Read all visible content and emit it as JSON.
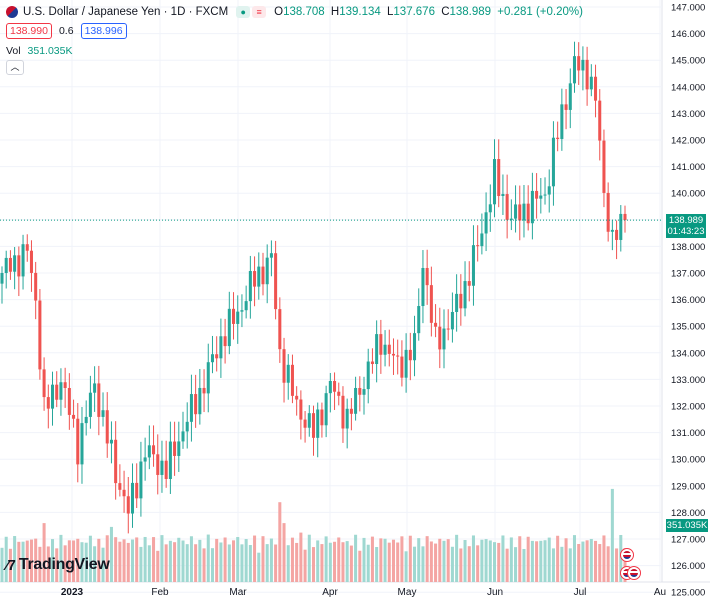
{
  "header": {
    "title": "U.S. Dollar / Japanese Yen · 1D · FXCM",
    "ohlc": {
      "o_label": "O",
      "o": "138.708",
      "h_label": "H",
      "h": "139.134",
      "l_label": "L",
      "l": "137.676",
      "c_label": "C",
      "c": "138.989",
      "change": "+0.281 (+0.20%)"
    },
    "sell_price": "138.990",
    "spread": "0.6",
    "buy_price": "138.996"
  },
  "volume_legend": {
    "label": "Vol",
    "value": "351.035K"
  },
  "price_label": {
    "price": "138.989",
    "countdown": "01:43:23"
  },
  "volume_axis_label": "351.035K",
  "logo_text": "TradingView",
  "colors": {
    "up": "#26a69a",
    "down": "#ef5350",
    "grid": "#f0f3fa",
    "price_line": "#089981"
  },
  "chart_data": {
    "type": "candlestick",
    "x_ticks": [
      "2023",
      "Feb",
      "Mar",
      "Apr",
      "May",
      "Jun",
      "Jul",
      "Au"
    ],
    "y_ticks": [
      "147.000",
      "146.000",
      "145.000",
      "144.000",
      "143.000",
      "142.000",
      "141.000",
      "140.000",
      "139.000",
      "138.000",
      "137.000",
      "136.000",
      "135.000",
      "134.000",
      "133.000",
      "132.000",
      "131.000",
      "130.000",
      "129.000",
      "128.000",
      "127.000",
      "126.000",
      "125.000"
    ],
    "ylim": [
      125,
      147
    ],
    "last_price": 138.989,
    "close_path": [
      {
        "i": 0,
        "v": 137.0
      },
      {
        "i": 6,
        "v": 137.8
      },
      {
        "i": 8,
        "v": 136.0
      },
      {
        "i": 10,
        "v": 131.8
      },
      {
        "i": 14,
        "v": 133.0
      },
      {
        "i": 18,
        "v": 130.5
      },
      {
        "i": 22,
        "v": 132.8
      },
      {
        "i": 27,
        "v": 129.5
      },
      {
        "i": 30,
        "v": 128.0
      },
      {
        "i": 34,
        "v": 130.3
      },
      {
        "i": 39,
        "v": 129.6
      },
      {
        "i": 41,
        "v": 130.4
      },
      {
        "i": 44,
        "v": 131.5
      },
      {
        "i": 47,
        "v": 132.5
      },
      {
        "i": 52,
        "v": 134.5
      },
      {
        "i": 56,
        "v": 135.5
      },
      {
        "i": 60,
        "v": 136.8
      },
      {
        "i": 64,
        "v": 137.5
      },
      {
        "i": 66,
        "v": 134.0
      },
      {
        "i": 70,
        "v": 132.0
      },
      {
        "i": 74,
        "v": 131.0
      },
      {
        "i": 78,
        "v": 132.8
      },
      {
        "i": 82,
        "v": 131.5
      },
      {
        "i": 86,
        "v": 133.0
      },
      {
        "i": 90,
        "v": 134.5
      },
      {
        "i": 94,
        "v": 133.5
      },
      {
        "i": 98,
        "v": 134.2
      },
      {
        "i": 100,
        "v": 137.5
      },
      {
        "i": 103,
        "v": 134.3
      },
      {
        "i": 107,
        "v": 135.4
      },
      {
        "i": 110,
        "v": 136.5
      },
      {
        "i": 113,
        "v": 138.0
      },
      {
        "i": 117,
        "v": 140.6
      },
      {
        "i": 121,
        "v": 139.0
      },
      {
        "i": 125,
        "v": 139.5
      },
      {
        "i": 129,
        "v": 140.0
      },
      {
        "i": 133,
        "v": 143.0
      },
      {
        "i": 136,
        "v": 144.8
      },
      {
        "i": 139,
        "v": 144.6
      },
      {
        "i": 141,
        "v": 143.5
      },
      {
        "i": 143,
        "v": 140.0
      },
      {
        "i": 145,
        "v": 138.2
      },
      {
        "i": 147,
        "v": 138.7
      },
      {
        "i": 148,
        "v": 138.989
      }
    ],
    "volume_spikes": [
      {
        "i": 10,
        "v": 1.55
      },
      {
        "i": 26,
        "v": 1.45
      },
      {
        "i": 66,
        "v": 2.1
      },
      {
        "i": 67,
        "v": 1.55
      },
      {
        "i": 71,
        "v": 1.3
      },
      {
        "i": 145,
        "v": 2.45
      }
    ]
  }
}
